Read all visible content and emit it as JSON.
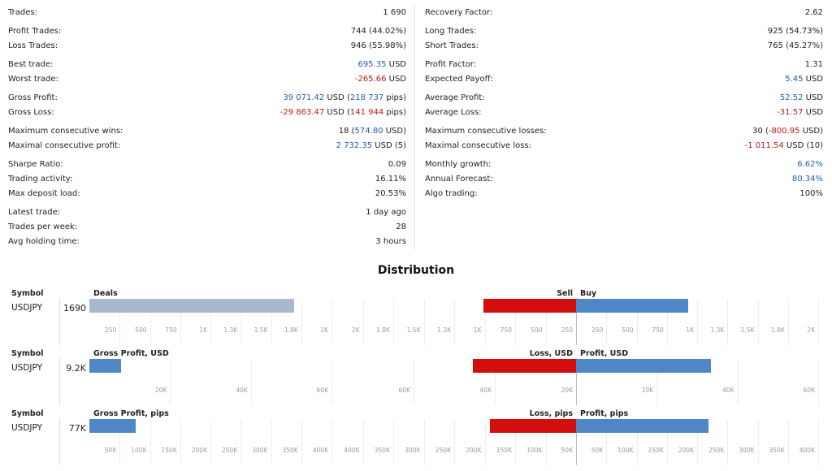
{
  "stats": {
    "left": [
      {
        "label": "Trades:",
        "value": "1 690",
        "group": 0
      },
      {
        "label": "Profit Trades:",
        "value": "744 (44.02%)",
        "group": 1
      },
      {
        "label": "Loss Trades:",
        "value": "946 (55.98%)",
        "group": 1
      },
      {
        "label": "Best trade:",
        "pos": "695.35",
        "rest": " USD",
        "group": 2
      },
      {
        "label": "Worst trade:",
        "neg": "-265.66",
        "rest": " USD",
        "group": 2
      },
      {
        "label": "Gross Profit:",
        "pos": "39 071.42",
        "mid": " USD (",
        "pos2": "218 737",
        "rest": " pips)",
        "group": 3
      },
      {
        "label": "Gross Loss:",
        "neg": "-29 863.47",
        "mid": " USD (",
        "neg2": "141 944",
        "rest": " pips)",
        "group": 3
      },
      {
        "label": "Maximum consecutive wins:",
        "value_pre": "18 (",
        "pos": "574.80",
        "rest": " USD)",
        "group": 4
      },
      {
        "label": "Maximal consecutive profit:",
        "pos": "2 732.35",
        "rest": " USD (5)",
        "group": 4
      },
      {
        "label": "Sharpe Ratio:",
        "value": "0.09",
        "group": 5
      },
      {
        "label": "Trading activity:",
        "value": "16.11%",
        "group": 5
      },
      {
        "label": "Max deposit load:",
        "value": "20.53%",
        "group": 5
      },
      {
        "label": "Latest trade:",
        "value": "1 day ago",
        "group": 6
      },
      {
        "label": "Trades per week:",
        "value": "28",
        "group": 6
      },
      {
        "label": "Avg holding time:",
        "value": "3 hours",
        "group": 6
      }
    ],
    "right": [
      {
        "label": "Recovery Factor:",
        "value": "2.62",
        "group": 0
      },
      {
        "label": "Long Trades:",
        "value": "925 (54.73%)",
        "group": 1
      },
      {
        "label": "Short Trades:",
        "value": "765 (45.27%)",
        "group": 1
      },
      {
        "label": "Profit Factor:",
        "value": "1.31",
        "group": 2
      },
      {
        "label": "Expected Payoff:",
        "pos": "5.45",
        "rest": " USD",
        "group": 2
      },
      {
        "label": "Average Profit:",
        "pos": "52.52",
        "rest": " USD",
        "group": 3
      },
      {
        "label": "Average Loss:",
        "neg": "-31.57",
        "rest": " USD",
        "group": 3
      },
      {
        "label": "Maximum consecutive losses:",
        "value_pre": "30 (",
        "neg": "-800.95",
        "rest": " USD)",
        "group": 4
      },
      {
        "label": "Maximal consecutive loss:",
        "neg": "-1 011.54",
        "rest": " USD (10)",
        "group": 4
      },
      {
        "label": "Monthly growth:",
        "pos": "6.62%",
        "group": 5
      },
      {
        "label": "Annual Forecast:",
        "pos": "80.34%",
        "group": 5
      },
      {
        "label": "Algo trading:",
        "value": "100%",
        "group": 5
      }
    ]
  },
  "distribution_title": "Distribution",
  "colors": {
    "deals": "#a9b7cf",
    "sell": "#d40d0d",
    "buy": "#4f87c6"
  },
  "sections": [
    {
      "symbol_header": "Symbol",
      "left_header": "Deals",
      "mid_header": "Sell",
      "right_header": "Buy",
      "symbol": "USDJPY",
      "value_label": "1690",
      "left_value": 1690,
      "left_max": 2000,
      "mid_value": 765,
      "mid_max": 2000,
      "right_value": 925,
      "right_max": 2000,
      "left_ticks": [
        "250",
        "500",
        "750",
        "1K",
        "1.3K",
        "1.5K",
        "1.8K",
        "2K"
      ],
      "mid_ticks": [
        "2K",
        "1.8K",
        "1.5K",
        "1.3K",
        "1K",
        "750",
        "500",
        "250"
      ],
      "right_ticks": [
        "250",
        "500",
        "750",
        "1K",
        "1.3K",
        "1.5K",
        "1.8K",
        "2K"
      ]
    },
    {
      "symbol_header": "Symbol",
      "left_header": "Gross Profit, USD",
      "mid_header": "Loss, USD",
      "right_header": "Profit, USD",
      "symbol": "USDJPY",
      "value_label": "9.2K",
      "left_value": 9200,
      "left_max": 70000,
      "mid_value": 29863,
      "mid_max": 70000,
      "right_value": 39071,
      "right_max": 70000,
      "left_ticks": [
        "20K",
        "40K",
        "60K"
      ],
      "mid_ticks": [
        "60K",
        "40K",
        "20K"
      ],
      "right_ticks": [
        "20K",
        "40K",
        "60K"
      ]
    },
    {
      "symbol_header": "Symbol",
      "left_header": "Gross Profit, pips",
      "mid_header": "Loss, pips",
      "right_header": "Profit, pips",
      "symbol": "USDJPY",
      "value_label": "77K",
      "left_value": 77000,
      "left_max": 400000,
      "mid_value": 141944,
      "mid_max": 400000,
      "right_value": 218737,
      "right_max": 400000,
      "left_ticks": [
        "50K",
        "100K",
        "150K",
        "200K",
        "250K",
        "300K",
        "350K",
        "400K"
      ],
      "mid_ticks": [
        "400K",
        "350K",
        "300K",
        "250K",
        "200K",
        "150K",
        "100K",
        "50K"
      ],
      "right_ticks": [
        "50K",
        "100K",
        "150K",
        "200K",
        "250K",
        "300K",
        "350K",
        "400K"
      ]
    }
  ]
}
